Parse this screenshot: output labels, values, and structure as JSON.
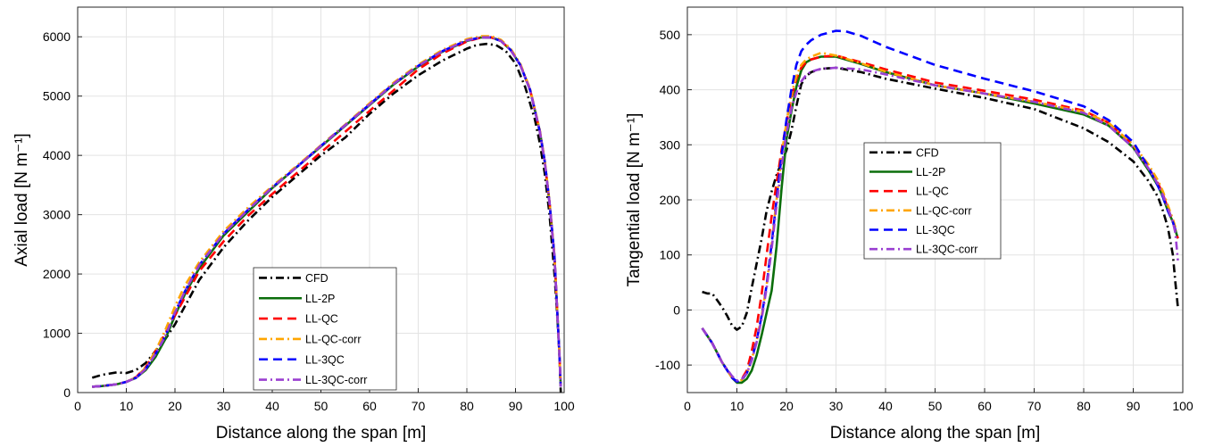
{
  "chart_data": [
    {
      "type": "line",
      "xlabel": "Distance along the span [m]",
      "ylabel": "Axial load [N m⁻¹]",
      "xlim": [
        0,
        100
      ],
      "ylim": [
        0,
        6500
      ],
      "xticks": [
        0,
        10,
        20,
        30,
        40,
        50,
        60,
        70,
        80,
        90,
        100
      ],
      "yticks": [
        0,
        1000,
        2000,
        3000,
        4000,
        5000,
        6000
      ],
      "grid": true,
      "legend": "bottom-center",
      "series": [
        {
          "name": "CFD",
          "color": "#000000",
          "dash": "dashdot",
          "x": [
            3,
            5,
            8,
            10,
            12,
            14,
            16,
            18,
            20,
            22,
            25,
            30,
            35,
            40,
            45,
            50,
            55,
            60,
            65,
            70,
            75,
            80,
            82,
            84,
            86,
            88,
            90,
            92,
            94,
            95,
            96,
            97,
            98,
            98.5,
            99,
            99.3
          ],
          "y": [
            250,
            300,
            340,
            330,
            380,
            500,
            700,
            900,
            1150,
            1450,
            1900,
            2450,
            2900,
            3300,
            3650,
            4000,
            4300,
            4700,
            5050,
            5350,
            5600,
            5800,
            5860,
            5880,
            5860,
            5760,
            5550,
            5150,
            4600,
            4200,
            3700,
            3000,
            2000,
            1400,
            700,
            0
          ]
        },
        {
          "name": "LL-2P",
          "color": "#0b6e0b",
          "dash": "solid",
          "x": [
            3,
            5,
            8,
            10,
            12,
            14,
            16,
            18,
            20,
            22,
            25,
            30,
            35,
            40,
            45,
            50,
            55,
            60,
            65,
            70,
            75,
            80,
            83,
            85,
            87,
            89,
            91,
            93,
            95,
            96,
            97,
            98,
            98.5,
            99,
            99.3
          ],
          "y": [
            100,
            110,
            140,
            180,
            250,
            380,
            600,
            900,
            1300,
            1650,
            2100,
            2650,
            3050,
            3450,
            3800,
            4150,
            4500,
            4850,
            5200,
            5500,
            5750,
            5930,
            5990,
            5990,
            5930,
            5780,
            5520,
            5100,
            4400,
            3900,
            3200,
            2300,
            1500,
            700,
            100
          ]
        },
        {
          "name": "LL-QC",
          "color": "#ff0000",
          "dash": "dashed",
          "x": [
            3,
            5,
            8,
            10,
            12,
            14,
            16,
            18,
            20,
            22,
            25,
            30,
            35,
            40,
            45,
            50,
            55,
            60,
            65,
            70,
            75,
            80,
            83,
            85,
            87,
            89,
            91,
            93,
            95,
            96,
            97,
            98,
            98.5,
            99,
            99.3
          ],
          "y": [
            100,
            110,
            140,
            180,
            260,
            430,
            700,
            1000,
            1300,
            1600,
            2050,
            2550,
            2980,
            3350,
            3700,
            4050,
            4400,
            4750,
            5100,
            5450,
            5720,
            5920,
            5990,
            5990,
            5930,
            5780,
            5520,
            5100,
            4400,
            3900,
            3200,
            2300,
            1500,
            700,
            100
          ]
        },
        {
          "name": "LL-QC-corr",
          "color": "#ffa500",
          "dash": "dashdot",
          "x": [
            3,
            5,
            8,
            10,
            12,
            14,
            16,
            18,
            20,
            22,
            25,
            30,
            35,
            40,
            45,
            50,
            55,
            60,
            65,
            70,
            75,
            80,
            83,
            85,
            87,
            89,
            91,
            93,
            95,
            96,
            97,
            98,
            98.5,
            99,
            99.3
          ],
          "y": [
            100,
            110,
            140,
            180,
            260,
            420,
            700,
            1050,
            1450,
            1800,
            2200,
            2720,
            3120,
            3480,
            3820,
            4170,
            4520,
            4880,
            5230,
            5530,
            5780,
            5960,
            6010,
            6010,
            5950,
            5800,
            5540,
            5120,
            4420,
            3920,
            3220,
            2320,
            1520,
            720,
            120
          ]
        },
        {
          "name": "LL-3QC",
          "color": "#0000ff",
          "dash": "dashed",
          "x": [
            3,
            5,
            8,
            10,
            12,
            14,
            16,
            18,
            20,
            22,
            25,
            30,
            35,
            40,
            45,
            50,
            55,
            60,
            65,
            70,
            75,
            80,
            83,
            85,
            87,
            89,
            91,
            93,
            95,
            96,
            97,
            98,
            98.5,
            99,
            99.3
          ],
          "y": [
            100,
            110,
            140,
            180,
            250,
            400,
            650,
            950,
            1350,
            1700,
            2150,
            2680,
            3080,
            3460,
            3800,
            4160,
            4510,
            4860,
            5210,
            5510,
            5760,
            5940,
            5990,
            5990,
            5930,
            5780,
            5520,
            5100,
            4400,
            3900,
            3200,
            2300,
            1500,
            700,
            100
          ]
        },
        {
          "name": "LL-3QC-corr",
          "color": "#9a3fd1",
          "dash": "dashdot",
          "x": [
            3,
            5,
            8,
            10,
            12,
            14,
            16,
            18,
            20,
            22,
            25,
            30,
            35,
            40,
            45,
            50,
            55,
            60,
            65,
            70,
            75,
            80,
            83,
            85,
            87,
            89,
            91,
            93,
            95,
            96,
            97,
            98,
            98.5,
            99,
            99.3
          ],
          "y": [
            100,
            110,
            140,
            180,
            250,
            400,
            650,
            950,
            1350,
            1700,
            2150,
            2680,
            3080,
            3460,
            3800,
            4160,
            4510,
            4860,
            5210,
            5510,
            5760,
            5940,
            5990,
            5990,
            5930,
            5780,
            5520,
            5100,
            4400,
            3900,
            3200,
            2300,
            1500,
            700,
            100
          ]
        }
      ]
    },
    {
      "type": "line",
      "xlabel": "Distance along the span [m]",
      "ylabel": "Tangential load [N m⁻¹]",
      "xlim": [
        0,
        100
      ],
      "ylim": [
        -150,
        550
      ],
      "xticks": [
        0,
        10,
        20,
        30,
        40,
        50,
        60,
        70,
        80,
        90,
        100
      ],
      "yticks": [
        -100,
        0,
        100,
        200,
        300,
        400,
        500
      ],
      "grid": true,
      "legend": "center",
      "series": [
        {
          "name": "CFD",
          "color": "#000000",
          "dash": "dashdot",
          "x": [
            3,
            4,
            5,
            6,
            7,
            8,
            9,
            10,
            11,
            12,
            13,
            14,
            15,
            16,
            17,
            18,
            19,
            20,
            21,
            22,
            23,
            24,
            25,
            27,
            30,
            35,
            40,
            50,
            60,
            70,
            80,
            85,
            90,
            93,
            95,
            96,
            97,
            98,
            98.5,
            99
          ],
          "y": [
            33,
            30,
            30,
            18,
            5,
            -10,
            -28,
            -36,
            -30,
            -5,
            40,
            85,
            130,
            180,
            215,
            245,
            268,
            290,
            325,
            370,
            410,
            425,
            432,
            438,
            440,
            432,
            420,
            402,
            385,
            365,
            330,
            305,
            270,
            235,
            205,
            180,
            150,
            100,
            50,
            5
          ]
        },
        {
          "name": "LL-2P",
          "color": "#0b6e0b",
          "dash": "solid",
          "x": [
            3,
            5,
            7,
            9,
            10,
            11,
            12,
            13,
            14,
            15,
            16,
            17,
            18,
            19,
            20,
            21,
            22,
            23,
            24,
            25,
            27,
            30,
            35,
            40,
            50,
            60,
            70,
            80,
            85,
            90,
            93,
            95,
            96,
            97,
            98,
            98.5,
            99
          ],
          "y": [
            -33,
            -60,
            -95,
            -123,
            -132,
            -132,
            -125,
            -110,
            -82,
            -45,
            -5,
            35,
            115,
            220,
            310,
            360,
            405,
            435,
            450,
            455,
            460,
            460,
            447,
            432,
            408,
            393,
            375,
            355,
            335,
            295,
            255,
            225,
            205,
            180,
            160,
            145,
            130
          ]
        },
        {
          "name": "LL-QC",
          "color": "#ff0000",
          "dash": "dashed",
          "x": [
            3,
            5,
            7,
            9,
            10,
            11,
            12,
            13,
            14,
            15,
            16,
            17,
            18,
            19,
            20,
            21,
            22,
            23,
            24,
            25,
            27,
            30,
            35,
            40,
            50,
            60,
            70,
            80,
            85,
            90,
            93,
            95,
            96,
            97,
            98,
            98.5,
            99
          ],
          "y": [
            -33,
            -60,
            -95,
            -123,
            -130,
            -125,
            -110,
            -75,
            -30,
            30,
            100,
            170,
            230,
            290,
            340,
            385,
            420,
            440,
            450,
            455,
            460,
            462,
            450,
            437,
            413,
            398,
            382,
            362,
            340,
            300,
            260,
            230,
            210,
            185,
            160,
            145,
            130
          ]
        },
        {
          "name": "LL-QC-corr",
          "color": "#ffa500",
          "dash": "dashdot",
          "x": [
            3,
            5,
            7,
            9,
            10,
            11,
            12,
            13,
            14,
            15,
            16,
            17,
            18,
            19,
            20,
            21,
            22,
            23,
            24,
            25,
            27,
            30,
            35,
            40,
            50,
            60,
            70,
            80,
            85,
            90,
            93,
            95,
            96,
            97,
            98,
            98.5,
            99
          ],
          "y": [
            -33,
            -60,
            -95,
            -123,
            -130,
            -127,
            -115,
            -90,
            -55,
            -10,
            45,
            120,
            200,
            280,
            340,
            390,
            425,
            445,
            455,
            460,
            467,
            462,
            448,
            433,
            408,
            393,
            378,
            360,
            340,
            300,
            265,
            235,
            215,
            190,
            165,
            150,
            145
          ]
        },
        {
          "name": "LL-3QC",
          "color": "#0000ff",
          "dash": "dashed",
          "x": [
            3,
            5,
            7,
            9,
            10,
            11,
            12,
            13,
            14,
            15,
            16,
            17,
            18,
            19,
            20,
            21,
            22,
            23,
            24,
            25,
            27,
            30,
            32,
            35,
            40,
            50,
            60,
            70,
            80,
            85,
            90,
            93,
            95,
            96,
            97,
            98,
            98.5,
            99
          ],
          "y": [
            -33,
            -60,
            -95,
            -123,
            -130,
            -127,
            -115,
            -90,
            -55,
            -10,
            45,
            120,
            200,
            280,
            345,
            400,
            445,
            470,
            482,
            490,
            500,
            507,
            506,
            498,
            478,
            445,
            420,
            397,
            370,
            345,
            305,
            260,
            225,
            205,
            180,
            160,
            145,
            140
          ]
        },
        {
          "name": "LL-3QC-corr",
          "color": "#9a3fd1",
          "dash": "dashdot",
          "x": [
            3,
            5,
            7,
            9,
            10,
            11,
            12,
            13,
            14,
            15,
            16,
            17,
            18,
            19,
            20,
            21,
            22,
            23,
            24,
            25,
            27,
            30,
            35,
            40,
            50,
            60,
            70,
            80,
            85,
            90,
            93,
            95,
            96,
            97,
            98,
            98.5,
            99
          ],
          "y": [
            -33,
            -60,
            -95,
            -120,
            -128,
            -125,
            -115,
            -92,
            -58,
            -15,
            40,
            110,
            190,
            260,
            320,
            365,
            395,
            415,
            427,
            433,
            438,
            440,
            437,
            428,
            408,
            393,
            378,
            358,
            335,
            295,
            258,
            228,
            208,
            185,
            160,
            140,
            90
          ]
        }
      ]
    }
  ]
}
